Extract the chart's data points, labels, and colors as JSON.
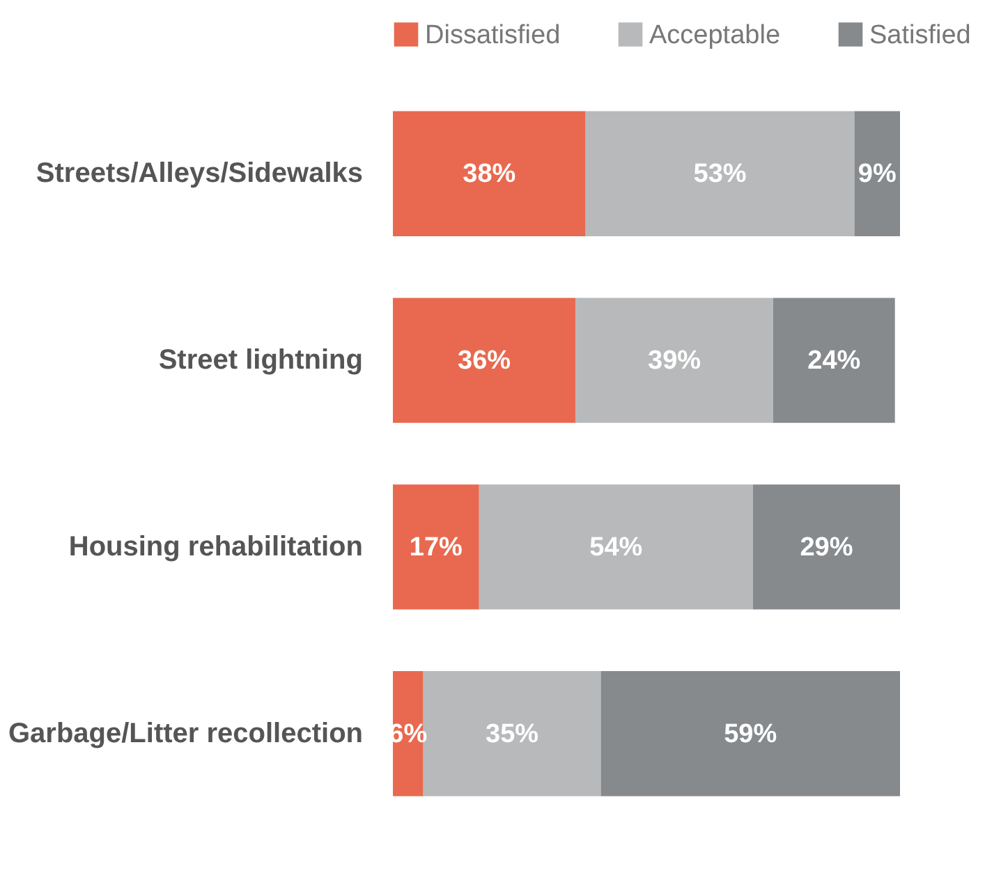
{
  "chart_data": {
    "type": "bar",
    "orientation": "horizontal",
    "stacked": true,
    "legend": "top",
    "categories": [
      "Streets/Alleys/Sidewalks",
      "Street lightning",
      "Housing rehabilitation",
      "Garbage/Litter recollection"
    ],
    "series": [
      {
        "name": "Dissatisfied",
        "color": "#e8694f",
        "values": [
          38,
          36,
          17,
          6
        ],
        "value_labels": [
          "38%",
          "36%",
          "17%",
          "6%"
        ]
      },
      {
        "name": "Acceptable",
        "color": "#b8b9bb",
        "values": [
          53,
          39,
          54,
          35
        ],
        "value_labels": [
          "53%",
          "39%",
          "54%",
          "35%"
        ]
      },
      {
        "name": "Satisfied",
        "color": "#868a8d",
        "values": [
          9,
          24,
          29,
          59
        ],
        "value_labels": [
          "9%",
          "24%",
          "29%",
          "59%"
        ]
      }
    ]
  }
}
